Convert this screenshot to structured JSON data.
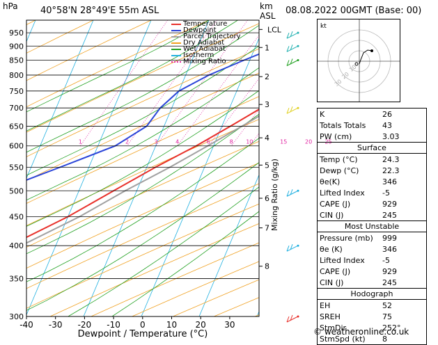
{
  "header": {
    "station": "40°58'N  28°49'E  55m  ASL",
    "datetime": "08.08.2022  00GMT  (Base: 00)",
    "hpa_label": "hPa",
    "km_label": "km",
    "asl_label": "ASL"
  },
  "legend": [
    "Temperature",
    "Dewpoint",
    "Parcel Trajectory",
    "Dry Adiabat",
    "Wet Adiabat",
    "Isotherm",
    "Mixing Ratio"
  ],
  "colors": {
    "temperature": "#e8302a",
    "dewpoint": "#2a44d8",
    "parcel": "#a0a0a0",
    "dry_adiabat": "#f0a020",
    "wet_adiabat": "#20a020",
    "isotherm": "#20b0e0",
    "mixing_ratio": "#e020a0"
  },
  "chart_data": {
    "type": "line",
    "xlabel": "Dewpoint / Temperature (°C)",
    "ylabel": "hPa",
    "right_ylabel": "Mixing Ratio (g/kg)",
    "xlim": [
      -40,
      40
    ],
    "ylim": [
      1000,
      300
    ],
    "x_ticks": [
      "-40",
      "-30",
      "-20",
      "-10",
      "0",
      "10",
      "20",
      "30"
    ],
    "pressure_levels": [
      300,
      350,
      400,
      450,
      500,
      550,
      600,
      650,
      700,
      750,
      800,
      850,
      900,
      950
    ],
    "km_ticks": [
      {
        "label": "8",
        "p": 368
      },
      {
        "label": "7",
        "p": 430
      },
      {
        "label": "6",
        "p": 485
      },
      {
        "label": "5",
        "p": 555
      },
      {
        "label": "4",
        "p": 620
      },
      {
        "label": "3",
        "p": 710
      },
      {
        "label": "2",
        "p": 795
      },
      {
        "label": "1",
        "p": 895
      },
      {
        "label": "LCL",
        "p": 963
      }
    ],
    "mixing_ratio_labels": [
      "1",
      "2",
      "3",
      "4",
      "6",
      "8",
      "10",
      "15",
      "20",
      "25"
    ],
    "series": [
      {
        "name": "Temperature",
        "points": [
          [
            975,
            23.5
          ],
          [
            950,
            22
          ],
          [
            925,
            21.5
          ],
          [
            900,
            20.5
          ],
          [
            850,
            17.5
          ],
          [
            800,
            14
          ],
          [
            750,
            10
          ],
          [
            700,
            5.5
          ],
          [
            650,
            1.5
          ],
          [
            600,
            -3
          ],
          [
            550,
            -8.5
          ],
          [
            500,
            -14
          ],
          [
            450,
            -20
          ],
          [
            400,
            -28
          ],
          [
            350,
            -37
          ],
          [
            300,
            -47
          ]
        ]
      },
      {
        "name": "Dewpoint",
        "points": [
          [
            975,
            22.3
          ],
          [
            950,
            20
          ],
          [
            925,
            12
          ],
          [
            900,
            4
          ],
          [
            850,
            -1
          ],
          [
            800,
            -6
          ],
          [
            750,
            -10
          ],
          [
            700,
            -12
          ],
          [
            650,
            -13
          ],
          [
            600,
            -17
          ],
          [
            550,
            -25
          ],
          [
            500,
            -34
          ],
          [
            450,
            -45
          ],
          [
            400,
            -55
          ],
          [
            350,
            -62
          ],
          [
            300,
            -68
          ]
        ]
      },
      {
        "name": "Parcel Trajectory",
        "points": [
          [
            975,
            23.5
          ],
          [
            950,
            22.5
          ],
          [
            900,
            20
          ],
          [
            850,
            17.5
          ],
          [
            800,
            14.5
          ],
          [
            750,
            11.5
          ],
          [
            700,
            7.5
          ],
          [
            650,
            3.5
          ],
          [
            600,
            -1
          ],
          [
            550,
            -6
          ],
          [
            500,
            -12
          ],
          [
            450,
            -18
          ],
          [
            400,
            -26
          ],
          [
            370,
            -31
          ]
        ]
      }
    ]
  },
  "hodograph": {
    "label": "kt",
    "ring_labels": [
      "10",
      "20",
      "30"
    ]
  },
  "indices": [
    {
      "label": "K",
      "value": "26"
    },
    {
      "label": "Totals Totals",
      "value": "43"
    },
    {
      "label": "PW (cm)",
      "value": "3.03"
    }
  ],
  "surface": {
    "title": "Surface",
    "rows": [
      {
        "label": "Temp (°C)",
        "value": "24.3"
      },
      {
        "label": "Dewp (°C)",
        "value": "22.3"
      },
      {
        "label": "θe(K)",
        "value": "346"
      },
      {
        "label": "Lifted Index",
        "value": "-5"
      },
      {
        "label": "CAPE (J)",
        "value": "929"
      },
      {
        "label": "CIN (J)",
        "value": "245"
      }
    ]
  },
  "most_unstable": {
    "title": "Most Unstable",
    "rows": [
      {
        "label": "Pressure (mb)",
        "value": "999"
      },
      {
        "label": "θe (K)",
        "value": "346"
      },
      {
        "label": "Lifted Index",
        "value": "-5"
      },
      {
        "label": "CAPE (J)",
        "value": "929"
      },
      {
        "label": "CIN (J)",
        "value": "245"
      }
    ]
  },
  "hodograph_stats": {
    "title": "Hodograph",
    "rows": [
      {
        "label": "EH",
        "value": "52"
      },
      {
        "label": "SREH",
        "value": "75"
      },
      {
        "label": "StmDir",
        "value": "252°"
      },
      {
        "label": "StmSpd (kt)",
        "value": "8"
      }
    ]
  },
  "copyright": "© weatheronline.co.uk"
}
